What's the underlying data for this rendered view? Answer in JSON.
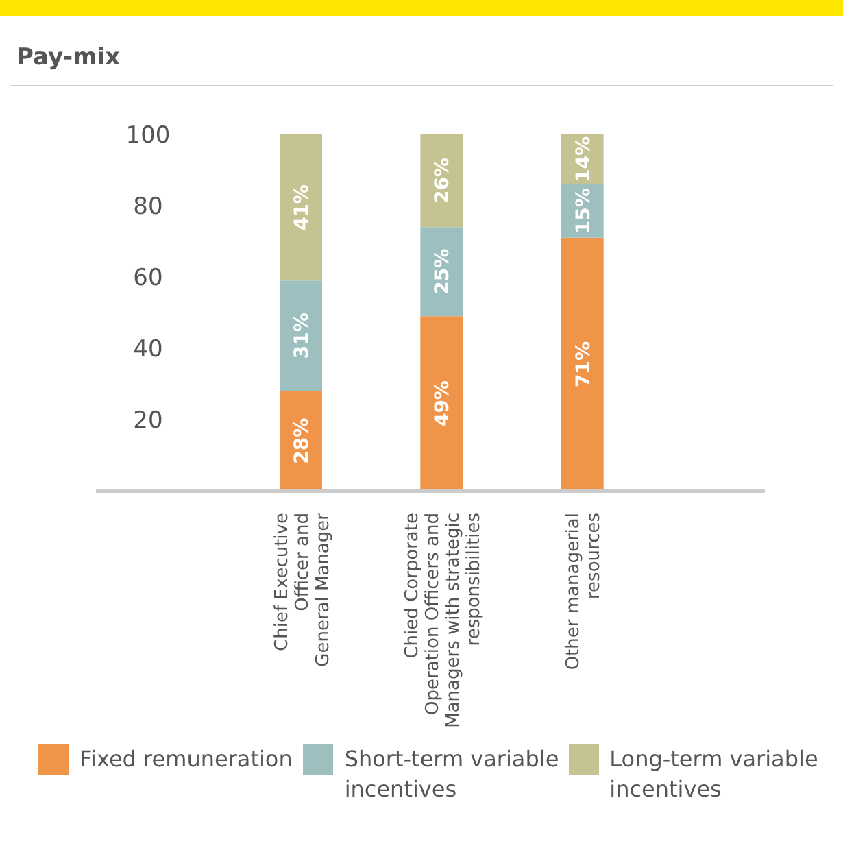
{
  "chart_data": {
    "type": "bar",
    "title": "Pay-mix",
    "stacked": true,
    "legend": "bottom",
    "categories": [
      "Chief Executive\nOfficer and\nGeneral Manager",
      "Chied Corporate\nOperation Officers and\nManagers with strategic\nresponsibilities",
      "Other managerial\nresources"
    ],
    "ylim": [
      0,
      100
    ],
    "yticks": [
      20,
      40,
      60,
      80,
      100
    ],
    "series": [
      {
        "name": "Fixed remuneration",
        "color": "#f0944a",
        "values": [
          28,
          49,
          71
        ],
        "value_labels": [
          "28%",
          "49%",
          "71%"
        ]
      },
      {
        "name": "Short-term variable incentives",
        "color": "#9dbfbf",
        "values": [
          31,
          25,
          15
        ],
        "value_labels": [
          "31%",
          "25%",
          "15%"
        ]
      },
      {
        "name": "Long-term variable incentives",
        "color": "#c5c392",
        "values": [
          41,
          26,
          14
        ],
        "value_labels": [
          "41%",
          "26%",
          "14%"
        ]
      }
    ]
  }
}
